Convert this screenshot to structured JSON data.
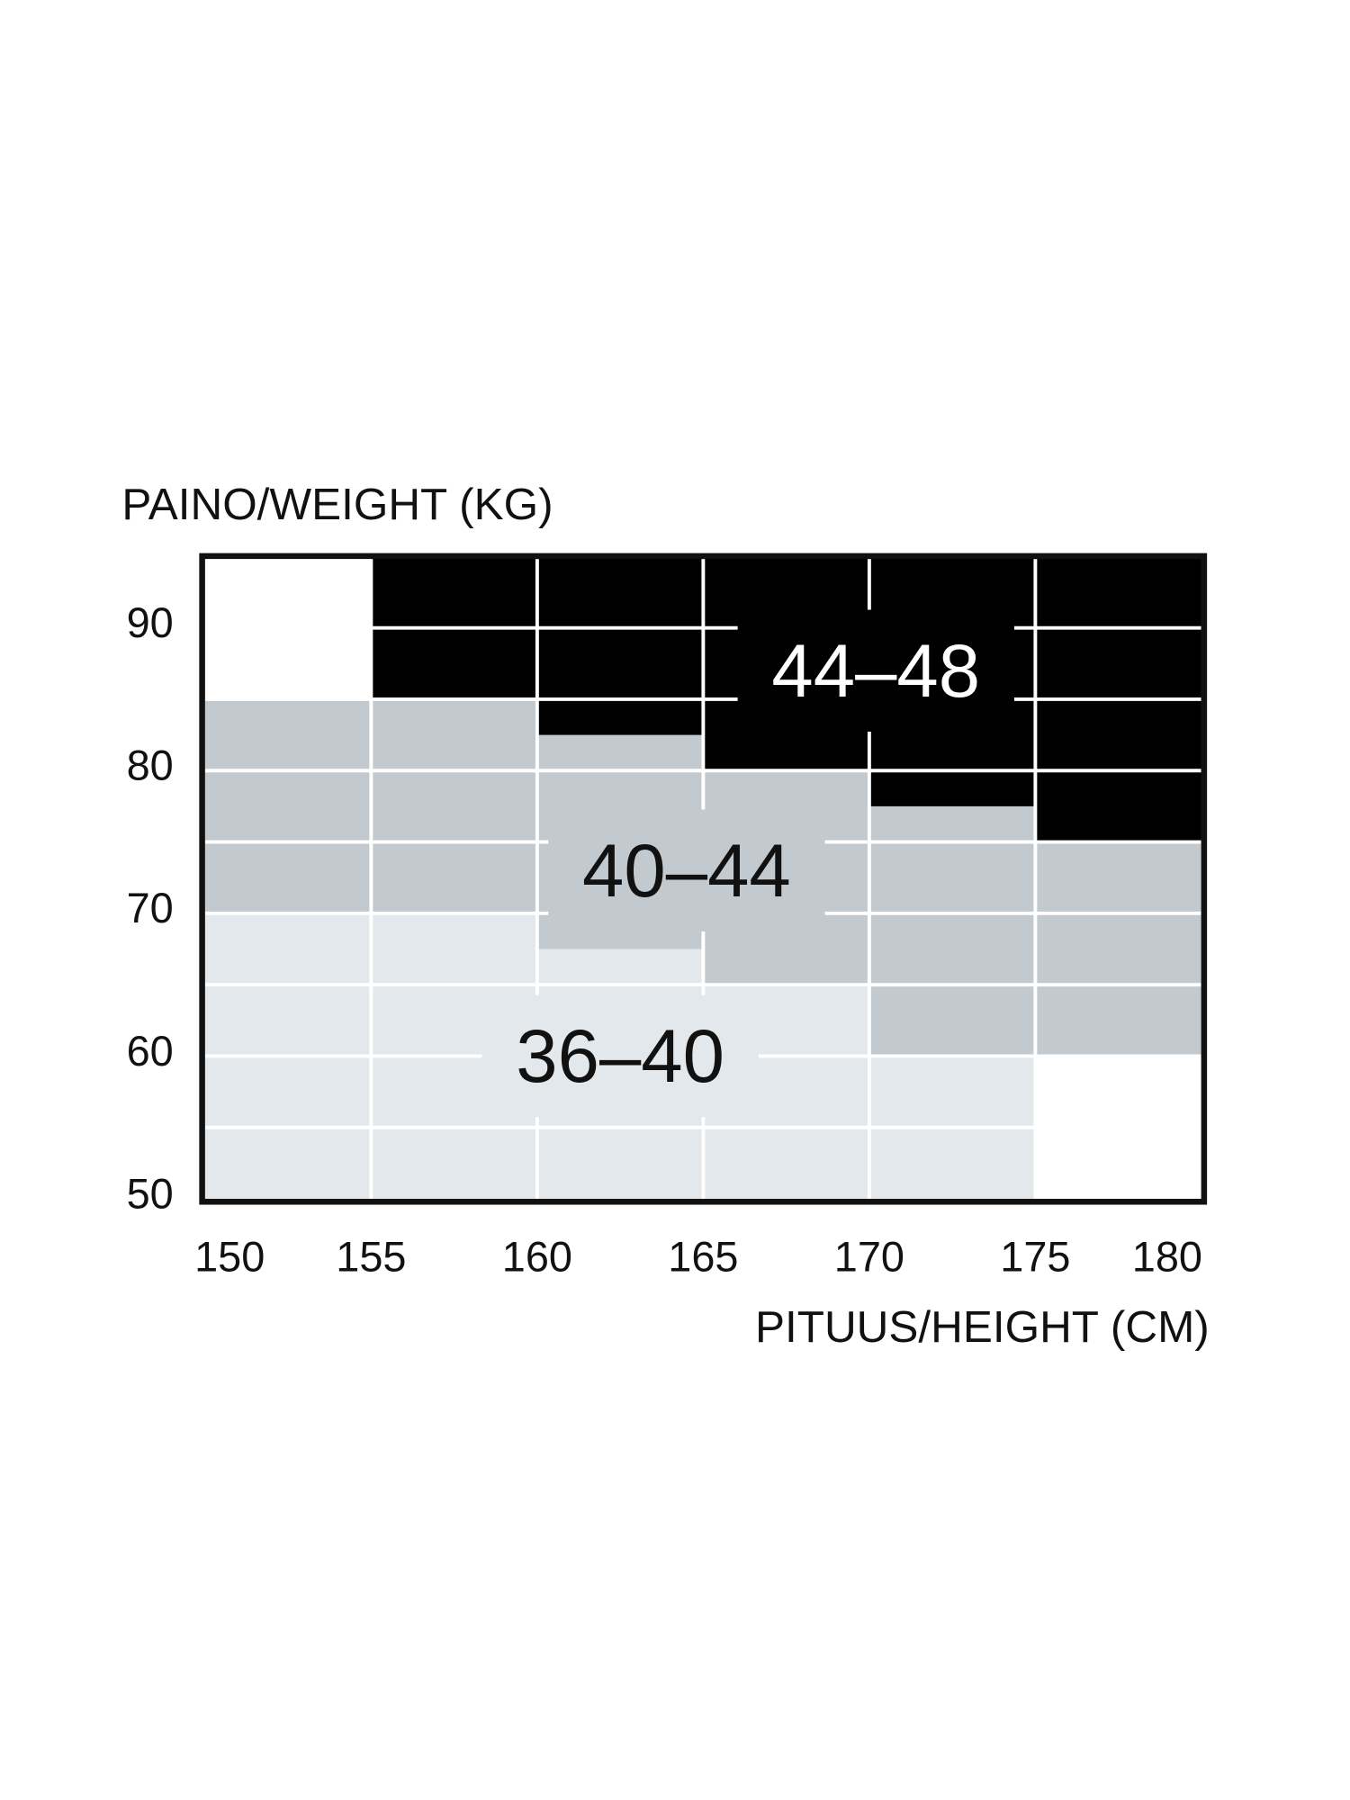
{
  "chart_data": {
    "type": "heatmap",
    "ylabel": "PAINO/WEIGHT (KG)",
    "xlabel": "PITUUS/HEIGHT (CM)",
    "xlim": [
      150,
      180
    ],
    "ylim": [
      50,
      95
    ],
    "x_ticks": [
      "150",
      "155",
      "160",
      "165",
      "170",
      "175",
      "180"
    ],
    "y_ticks": [
      "90",
      "80",
      "70",
      "60",
      "50"
    ],
    "grid": true,
    "colors": {
      "44–48": "#000000",
      "40–44": "#c2cacf",
      "36–40": "#e2e8ec",
      "none": "#ffffff"
    },
    "regions": [
      {
        "label": "36–40",
        "label_at": [
          162.5,
          60
        ],
        "label_color": "#111111",
        "cells": [
          [
            150,
            155,
            50,
            70
          ],
          [
            155,
            160,
            50,
            70
          ],
          [
            160,
            165,
            50,
            67.5
          ],
          [
            165,
            170,
            50,
            65
          ],
          [
            170,
            175,
            50,
            60
          ]
        ]
      },
      {
        "label": "40–44",
        "label_at": [
          164.5,
          73
        ],
        "label_color": "#111111",
        "cells": [
          [
            150,
            155,
            70,
            85
          ],
          [
            155,
            160,
            70,
            85
          ],
          [
            160,
            165,
            67.5,
            82.5
          ],
          [
            165,
            170,
            65,
            80
          ],
          [
            170,
            175,
            60,
            77.5
          ],
          [
            175,
            180,
            60,
            75
          ]
        ]
      },
      {
        "label": "44–48",
        "label_at": [
          170.2,
          87
        ],
        "label_color": "#ffffff",
        "cells": [
          [
            155,
            160,
            85,
            95
          ],
          [
            160,
            165,
            82.5,
            95
          ],
          [
            165,
            170,
            80,
            95
          ],
          [
            170,
            175,
            77.5,
            95
          ],
          [
            175,
            180,
            75,
            95
          ]
        ]
      }
    ]
  }
}
